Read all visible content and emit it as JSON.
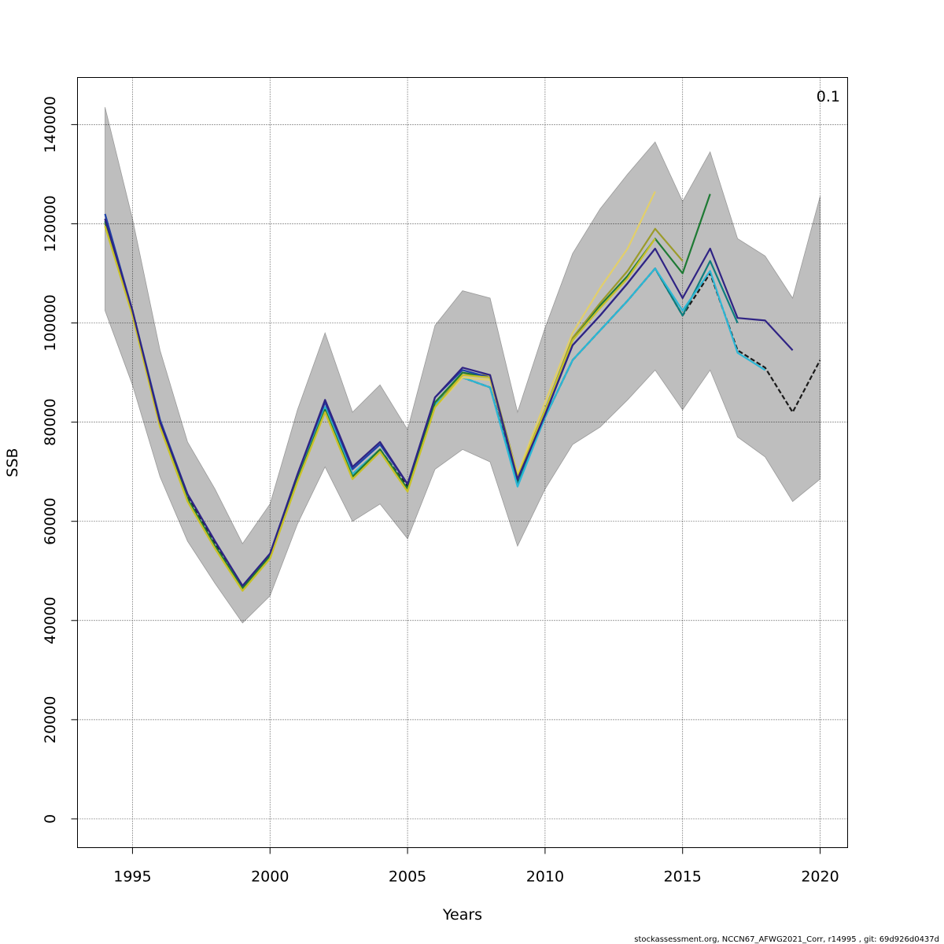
{
  "chart_data": {
    "type": "line",
    "xlabel": "Years",
    "ylabel": "SSB",
    "corner_label": "0.1",
    "footer": "stockassessment.org, NCCN67_AFWG2021_Corr, r14995 , git: 69d926d0437d",
    "xlim": [
      1993,
      2021
    ],
    "ylim": [
      -5800,
      149500
    ],
    "x_ticks": [
      1995,
      2000,
      2005,
      2010,
      2015,
      2020
    ],
    "x_tick_labels": [
      "1995",
      "2000",
      "2005",
      "2010",
      "2015",
      "2020"
    ],
    "y_ticks": [
      0,
      20000,
      40000,
      60000,
      80000,
      100000,
      120000,
      140000
    ],
    "y_tick_labels": [
      "0",
      "20000",
      "40000",
      "60000",
      "80000",
      "100000",
      "120000",
      "140000"
    ],
    "grid": true,
    "confidence_band": {
      "color": "#bebebe",
      "x": [
        1994,
        1995,
        1996,
        1997,
        1998,
        1999,
        2000,
        2001,
        2002,
        2003,
        2004,
        2005,
        2006,
        2007,
        2008,
        2009,
        2010,
        2011,
        2012,
        2013,
        2014,
        2015,
        2016,
        2017,
        2018,
        2019,
        2020
      ],
      "upper": [
        143500,
        121000,
        94500,
        76000,
        66500,
        55500,
        63500,
        82500,
        98000,
        82000,
        87500,
        78500,
        99500,
        106500,
        105000,
        82000,
        99000,
        114000,
        123000,
        130000,
        136500,
        124500,
        134500,
        117000,
        113500,
        105000,
        125500
      ],
      "lower": [
        102500,
        87500,
        69000,
        56000,
        47500,
        39500,
        45000,
        59500,
        71000,
        60000,
        63500,
        56500,
        70500,
        74500,
        72000,
        55000,
        66500,
        75500,
        79000,
        84500,
        90500,
        82500,
        90500,
        77000,
        73000,
        64000,
        68500
      ]
    },
    "series": [
      {
        "color": "#1a1a1a",
        "dashed": true,
        "x": [
          1994,
          1995,
          1996,
          1997,
          1998,
          1999,
          2000,
          2001,
          2002,
          2003,
          2004,
          2005,
          2006,
          2007,
          2008,
          2009,
          2010,
          2011,
          2012,
          2013,
          2014,
          2015,
          2016,
          2017,
          2018,
          2019,
          2020
        ],
        "y": [
          121000,
          102500,
          80000,
          65000,
          55500,
          46500,
          53000,
          68500,
          83000,
          69500,
          74500,
          67000,
          84000,
          89000,
          87000,
          68000,
          81000,
          92500,
          98500,
          104500,
          111000,
          101500,
          110000,
          94500,
          91000,
          82000,
          92500
        ]
      },
      {
        "color": "#0d7f7f",
        "x": [
          1994,
          1995,
          1996,
          1997,
          1998,
          1999,
          2000,
          2001,
          2002,
          2003,
          2004,
          2005,
          2006,
          2007,
          2008,
          2009,
          2010,
          2011,
          2012,
          2013,
          2014,
          2015,
          2016,
          2017
        ],
        "y": [
          120500,
          102000,
          79500,
          64500,
          55000,
          46500,
          53000,
          68500,
          83000,
          69500,
          74500,
          66500,
          83500,
          89000,
          87000,
          67500,
          81000,
          92500,
          98500,
          104500,
          111000,
          101500,
          112500,
          100000
        ]
      },
      {
        "color": "#2bb7d6",
        "x": [
          1994,
          1995,
          1996,
          1997,
          1998,
          1999,
          2000,
          2001,
          2002,
          2003,
          2004,
          2005,
          2006,
          2007,
          2008,
          2009,
          2010,
          2011,
          2012,
          2013,
          2014,
          2015,
          2016,
          2017,
          2018
        ],
        "y": [
          120500,
          102000,
          79500,
          64500,
          55000,
          46500,
          53000,
          68500,
          83000,
          69500,
          74500,
          66500,
          83500,
          89000,
          87000,
          67000,
          81000,
          92500,
          98500,
          104500,
          111000,
          102500,
          110500,
          94000,
          90500
        ]
      },
      {
        "color": "#9b9b2a",
        "x": [
          1994,
          1995,
          1996,
          1997,
          1998,
          1999,
          2000,
          2001,
          2002,
          2003,
          2004,
          2005,
          2006,
          2007,
          2008,
          2009,
          2010,
          2011,
          2012,
          2013,
          2014,
          2015
        ],
        "y": [
          120000,
          102000,
          79500,
          64500,
          55000,
          46500,
          52500,
          68500,
          82500,
          69000,
          74500,
          66500,
          84000,
          89500,
          89500,
          69500,
          82500,
          97000,
          104000,
          110500,
          119000,
          112500
        ]
      },
      {
        "color": "#1e7a34",
        "x": [
          1994,
          1995,
          1996,
          1997,
          1998,
          1999,
          2000,
          2001,
          2002,
          2003,
          2004,
          2005,
          2006,
          2007,
          2008,
          2009,
          2010,
          2011,
          2012,
          2013,
          2014,
          2015,
          2016
        ],
        "y": [
          120500,
          102000,
          79500,
          64500,
          55000,
          46500,
          53000,
          68500,
          82500,
          69000,
          74500,
          66500,
          84000,
          90000,
          89000,
          68500,
          82500,
          96500,
          103500,
          109500,
          117000,
          110000,
          126000
        ]
      },
      {
        "color": "#e2cf6a",
        "x": [
          1994,
          1995,
          1996,
          1997,
          1998,
          1999,
          2000,
          2001,
          2002,
          2003,
          2004,
          2005,
          2006,
          2007,
          2008,
          2009,
          2010,
          2011,
          2012,
          2013,
          2014
        ],
        "y": [
          119500,
          101500,
          79000,
          64000,
          54500,
          46000,
          52500,
          68000,
          82000,
          68500,
          74000,
          66000,
          83000,
          89000,
          88500,
          69500,
          84000,
          98000,
          107000,
          115000,
          126500
        ]
      },
      {
        "color": "#1f43a8",
        "x": [
          1994,
          1995,
          1996,
          1997,
          1998,
          1999,
          2000,
          2001,
          2002,
          2003,
          2004,
          2005,
          2006,
          2007,
          2008,
          2009,
          2010,
          2011,
          2012,
          2013,
          2014
        ],
        "y": [
          122000,
          102500,
          80500,
          65500,
          56000,
          47000,
          53500,
          69500,
          84000,
          70500,
          75500,
          67500,
          85000,
          90500,
          89000,
          68500,
          81500,
          95500,
          101500,
          108000,
          115000
        ]
      },
      {
        "color": "#c9c128",
        "x": [
          1994,
          1995,
          1996,
          1997,
          1998,
          1999,
          2000,
          2001,
          2002,
          2003,
          2004,
          2005,
          2006,
          2007,
          2008,
          2009,
          2010,
          2011,
          2012,
          2013,
          2014
        ],
        "y": [
          119500,
          101500,
          79000,
          64000,
          54500,
          46000,
          52500,
          68000,
          82000,
          68500,
          74000,
          66000,
          83000,
          89500,
          89000,
          69000,
          82500,
          96500,
          103000,
          109000,
          117000
        ]
      },
      {
        "color": "#2f2384",
        "x": [
          1994,
          1995,
          1996,
          1997,
          1998,
          1999,
          2000,
          2001,
          2002,
          2003,
          2004,
          2005,
          2006,
          2007,
          2008,
          2009,
          2010,
          2011,
          2012,
          2013,
          2014,
          2015,
          2016,
          2017,
          2018,
          2019
        ],
        "y": [
          121000,
          102500,
          80000,
          65500,
          56000,
          47000,
          53500,
          69500,
          84500,
          71000,
          76000,
          67500,
          85000,
          91000,
          89500,
          68500,
          81500,
          95500,
          101500,
          108000,
          115000,
          105000,
          115000,
          101000,
          100500,
          94500
        ]
      }
    ]
  }
}
